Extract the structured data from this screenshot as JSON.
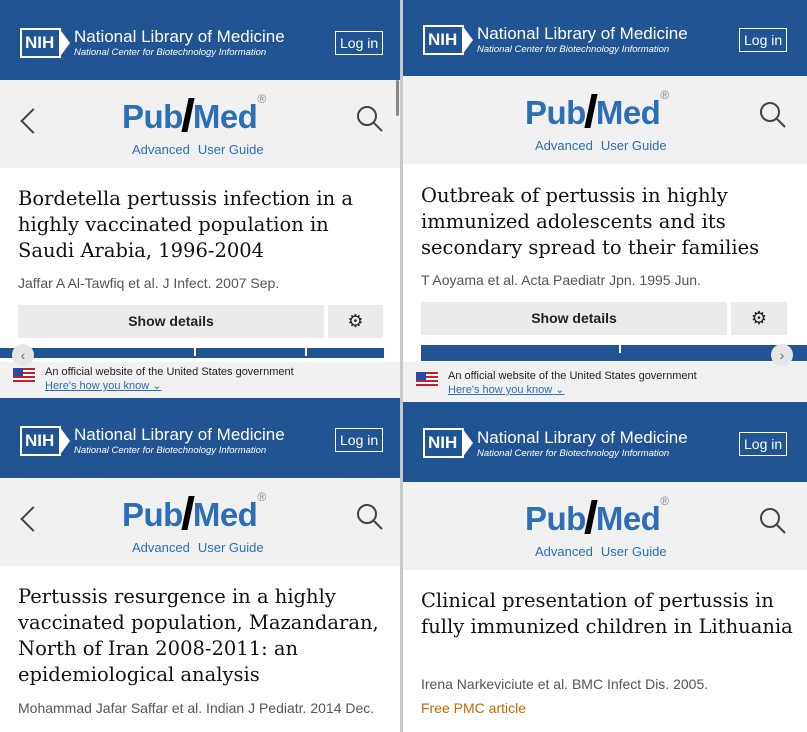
{
  "header": {
    "nih": "NIH",
    "org_title": "National Library of Medicine",
    "org_subtitle": "National Center for Biotechnology Information",
    "login": "Log in"
  },
  "pubmed": {
    "logo_left": "Pub",
    "logo_right": "Med",
    "reg": "®",
    "advanced": "Advanced",
    "user_guide": "User Guide"
  },
  "gov": {
    "text": "An official website of the United States government",
    "link": "Here's how you know"
  },
  "buttons": {
    "show_details": "Show details"
  },
  "icons": {
    "gear": "⚙",
    "left_arrow": "‹",
    "right_arrow": "›"
  },
  "colors": {
    "nlm_blue": "#205493",
    "pubmed_blue": "#2c6fb7",
    "pmc_orange": "#c26a00"
  },
  "articles": [
    {
      "title": "Bordetella pertussis infection in a highly vaccinated population in Saudi Arabia, 1996-2004",
      "meta": "Jaffar A Al-Tawfiq et al. J Infect. 2007 Sep."
    },
    {
      "title": "Outbreak of pertussis in highly immunized adolescents and its secondary spread to their families",
      "meta": "T Aoyama et al. Acta Paediatr Jpn. 1995 Jun."
    },
    {
      "title": "Pertussis resurgence in a highly vaccinated population, Mazandaran, North of Iran 2008-2011: an epidemiological analysis",
      "meta": "Mohammad Jafar Saffar et al. Indian J Pediatr. 2014 Dec."
    },
    {
      "title": "Clinical presentation of pertussis in fully immunized children in Lithuania",
      "meta": "Irena Narkeviciute et al. BMC Infect Dis. 2005.",
      "badge": "Free PMC article"
    }
  ]
}
